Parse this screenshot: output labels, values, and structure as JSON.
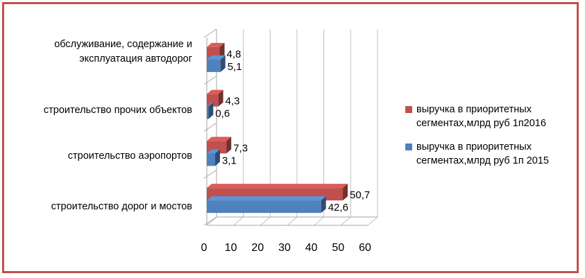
{
  "colors": {
    "frame": "#c0504d",
    "series_2016": "#c0504d",
    "series_2015": "#4f81bd"
  },
  "chart_data": {
    "type": "bar",
    "orientation": "horizontal",
    "three_d": true,
    "title": "",
    "xlabel": "",
    "ylabel": "",
    "xlim": [
      0,
      60
    ],
    "x_ticks": [
      "0",
      "10",
      "20",
      "30",
      "40",
      "50",
      "60"
    ],
    "grid": true,
    "legend_position": "right",
    "categories": [
      [
        "обслуживание, содержание и",
        "эксплуатация автодорог"
      ],
      [
        "строительство прочих объектов"
      ],
      [
        "строительство аэропортов"
      ],
      [
        "строительство дорог и мостов"
      ]
    ],
    "series": [
      {
        "name": [
          "выручка в приоритетных",
          "сегментах,млрд руб 1п2016"
        ],
        "color": "#c0504d",
        "values": [
          4.8,
          4.3,
          7.3,
          50.7
        ],
        "labels": [
          "4,8",
          "4,3",
          "7,3",
          "50,7"
        ]
      },
      {
        "name": [
          "выручка в приоритетных",
          "сегментах,млрд руб 1п 2015"
        ],
        "color": "#4f81bd",
        "values": [
          5.1,
          0.6,
          3.1,
          42.6
        ],
        "labels": [
          "5,1",
          "0,6",
          "3,1",
          "42,6"
        ]
      }
    ]
  }
}
